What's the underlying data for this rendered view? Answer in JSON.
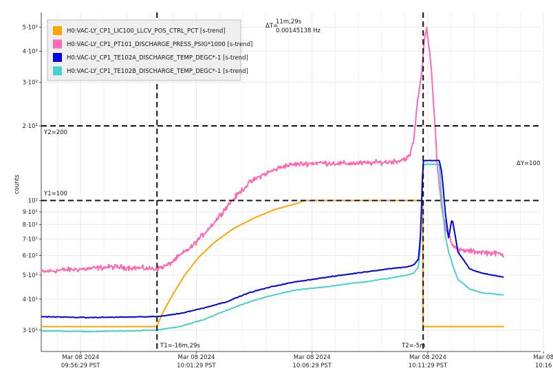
{
  "chart_data": {
    "type": "line",
    "title": "",
    "ylabel": "counts",
    "xlabel": "",
    "yscale": "log",
    "ylim": [
      27,
      520
    ],
    "xlim": [
      "Mar 08 2024 09:54:46 PST",
      "Mar 08 2024 10:16:29 PST"
    ],
    "x_ticks": [
      {
        "date": "Mar 08 2024",
        "time": "09:56:29 PST"
      },
      {
        "date": "Mar 08 2024",
        "time": "10:01:29 PST"
      },
      {
        "date": "Mar 08 2024",
        "time": "10:06:29 PST"
      },
      {
        "date": "Mar 08 2024",
        "time": "10:11:29 PST"
      },
      {
        "date": "Mar 08",
        "time": "10:16"
      }
    ],
    "y_ticks": [
      {
        "value": 30,
        "label": "3·10¹"
      },
      {
        "value": 40,
        "label": "4·10¹"
      },
      {
        "value": 50,
        "label": "5·10¹"
      },
      {
        "value": 60,
        "label": "6·10¹"
      },
      {
        "value": 70,
        "label": "7·10¹"
      },
      {
        "value": 80,
        "label": "8·10¹"
      },
      {
        "value": 90,
        "label": "9·10¹"
      },
      {
        "value": 100,
        "label": "10²"
      },
      {
        "value": 200,
        "label": "2·10²"
      },
      {
        "value": 300,
        "label": "3·10²"
      },
      {
        "value": 400,
        "label": "4·10²"
      },
      {
        "value": 500,
        "label": "5·10²"
      }
    ],
    "grid": true,
    "legend_position": "top-left",
    "series": [
      {
        "name": "H0:VAC-LY_CP1_LIC100_LLCV_POS_CTRL_PCT [s-trend]",
        "color": "#ffa500",
        "points": [
          [
            0,
            31
          ],
          [
            5,
            31
          ],
          [
            5.05,
            32
          ],
          [
            5.3,
            36
          ],
          [
            5.7,
            42
          ],
          [
            6.2,
            50
          ],
          [
            6.8,
            59
          ],
          [
            7.5,
            68
          ],
          [
            8.3,
            77
          ],
          [
            9.2,
            85
          ],
          [
            10.1,
            92
          ],
          [
            11,
            97
          ],
          [
            11.3,
            99.5
          ],
          [
            11.5,
            100
          ],
          [
            16.48,
            100
          ],
          [
            16.5,
            31
          ],
          [
            20,
            31
          ]
        ]
      },
      {
        "name": "H0:VAC-LY_CP1_PT101_DISCHARGE_PRESS_PSIG*1000 [s-trend]",
        "color": "#ff69b4",
        "points": [
          [
            0,
            51.5
          ],
          [
            1,
            52.5
          ],
          [
            2,
            53
          ],
          [
            3,
            54
          ],
          [
            4,
            53.5
          ],
          [
            5,
            53
          ],
          [
            5.5,
            55
          ],
          [
            6,
            60
          ],
          [
            6.5,
            65
          ],
          [
            7,
            73
          ],
          [
            7.5,
            82
          ],
          [
            8,
            94
          ],
          [
            8.5,
            106
          ],
          [
            9,
            118
          ],
          [
            9.5,
            126
          ],
          [
            10,
            132
          ],
          [
            10.5,
            138
          ],
          [
            11,
            140
          ],
          [
            12,
            142
          ],
          [
            13,
            141
          ],
          [
            14,
            141.5
          ],
          [
            15,
            143
          ],
          [
            15.5,
            145
          ],
          [
            15.9,
            150
          ],
          [
            16.1,
            175
          ],
          [
            16.3,
            270
          ],
          [
            16.45,
            330
          ],
          [
            16.55,
            450
          ],
          [
            16.65,
            500
          ],
          [
            16.8,
            380
          ],
          [
            16.95,
            245
          ],
          [
            17.1,
            140
          ],
          [
            17.3,
            92
          ],
          [
            17.5,
            76
          ],
          [
            17.8,
            66
          ],
          [
            18,
            63
          ],
          [
            19,
            62
          ],
          [
            19.8,
            61
          ],
          [
            20,
            60
          ]
        ]
      },
      {
        "name": "H0:VAC-LY_CP1_TE102A_DISCHARGE_TEMP_DEGC*-1 [s-trend]",
        "color": "#0000e0",
        "points": [
          [
            0,
            34
          ],
          [
            2,
            33.7
          ],
          [
            4,
            33.9
          ],
          [
            5,
            34
          ],
          [
            6,
            35
          ],
          [
            7,
            36.8
          ],
          [
            8,
            39
          ],
          [
            9,
            42.5
          ],
          [
            10,
            45
          ],
          [
            11,
            47
          ],
          [
            12,
            48.5
          ],
          [
            13,
            50
          ],
          [
            14,
            51.5
          ],
          [
            15,
            53
          ],
          [
            15.8,
            54
          ],
          [
            16.1,
            55
          ],
          [
            16.3,
            58
          ],
          [
            16.4,
            75
          ],
          [
            16.5,
            145
          ],
          [
            17.2,
            145
          ],
          [
            17.3,
            130
          ],
          [
            17.45,
            90
          ],
          [
            17.6,
            70
          ],
          [
            17.75,
            85
          ],
          [
            17.85,
            75
          ],
          [
            18,
            62
          ],
          [
            18.5,
            53
          ],
          [
            19,
            51
          ],
          [
            19.5,
            50
          ],
          [
            20,
            49
          ]
        ]
      },
      {
        "name": "H0:VAC-LY_CP1_TE102B_DISCHARGE_TEMP_DEGC*-1 [s-trend]",
        "color": "#48d1cc",
        "points": [
          [
            0,
            29.8
          ],
          [
            2,
            29.6
          ],
          [
            4,
            29.8
          ],
          [
            5,
            30
          ],
          [
            6,
            31
          ],
          [
            7,
            33
          ],
          [
            8,
            36
          ],
          [
            9,
            39
          ],
          [
            10,
            41.5
          ],
          [
            11,
            43.5
          ],
          [
            12,
            44.5
          ],
          [
            13,
            45.8
          ],
          [
            14,
            47
          ],
          [
            15,
            48.5
          ],
          [
            15.8,
            50
          ],
          [
            16.1,
            51
          ],
          [
            16.3,
            54
          ],
          [
            16.4,
            70
          ],
          [
            16.5,
            140
          ],
          [
            17.2,
            140
          ],
          [
            17.3,
            100
          ],
          [
            17.45,
            72
          ],
          [
            17.6,
            62
          ],
          [
            17.8,
            54
          ],
          [
            18,
            48
          ],
          [
            18.5,
            44
          ],
          [
            19,
            42.5
          ],
          [
            19.5,
            42
          ],
          [
            20,
            41.5
          ]
        ]
      }
    ],
    "cursors": {
      "T1": {
        "label": "T1=-16m,29s",
        "t": 5
      },
      "T2": {
        "label": "T2=-5m",
        "t": 16.5
      },
      "Y1": {
        "label": "Y1=100",
        "value": 100
      },
      "Y2": {
        "label": "Y2=200",
        "value": 200
      },
      "dT_label": "ΔT=",
      "dT_value": "11m,29s",
      "dT_freq": "0.00145138 Hz",
      "dY_label": "ΔY=100"
    }
  }
}
